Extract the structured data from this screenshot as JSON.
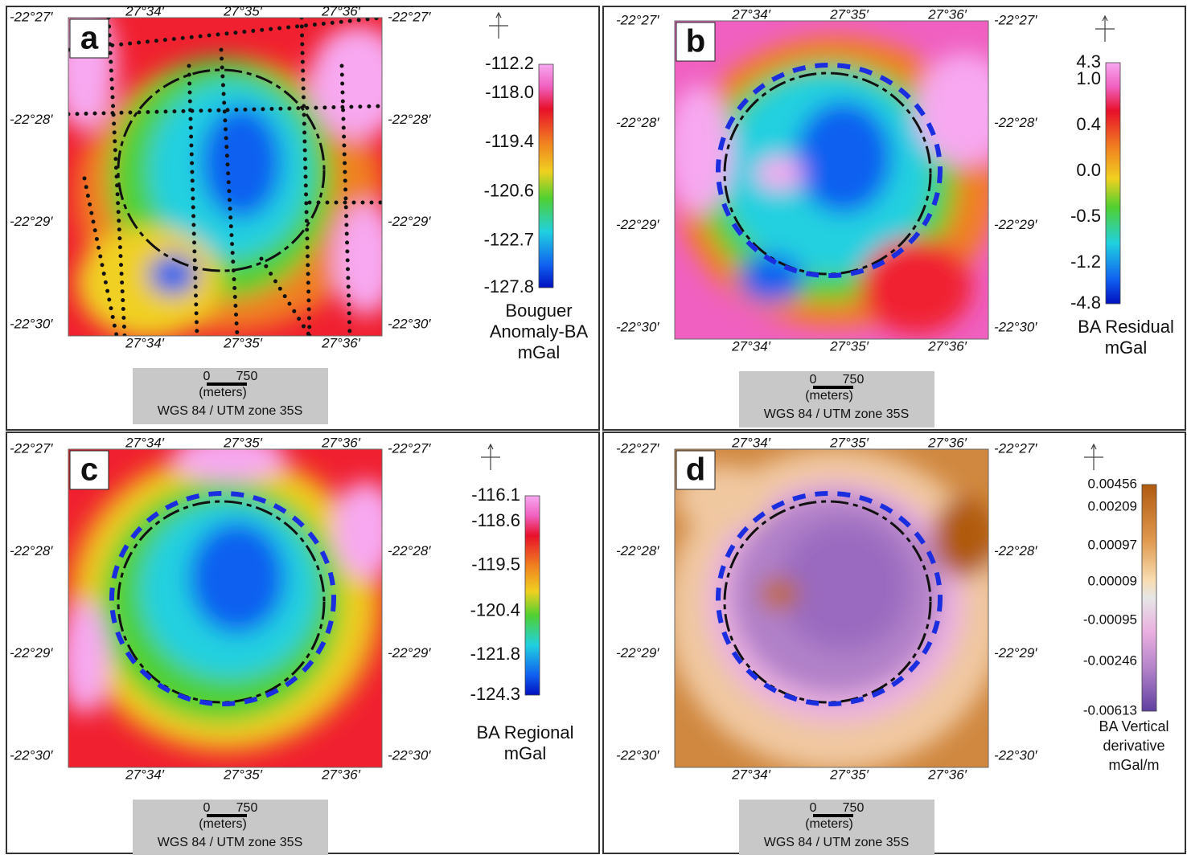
{
  "panels": [
    {
      "label": "a",
      "lat_labels": [
        "-22°27′",
        "-22°28′",
        "-22°29′",
        "-22°30′"
      ],
      "lon_labels": [
        "27°34′",
        "27°35′",
        "27°36′"
      ],
      "colorbar_labels": [
        "-112.2",
        "-118.0",
        "-119.4",
        "-120.6",
        "-122.7",
        "-127.8"
      ],
      "legend_title": [
        "Bouguer",
        "Anomaly-BA",
        "mGal"
      ],
      "scale": {
        "start": "0",
        "length": "750",
        "unit": "(meters)",
        "crs": "WGS 84 / UTM zone 35S"
      }
    },
    {
      "label": "b",
      "lat_labels": [
        "-22°27′",
        "-22°28′",
        "-22°29′",
        "-22°30′"
      ],
      "lon_labels": [
        "27°34′",
        "27°35′",
        "27°36′"
      ],
      "colorbar_labels": [
        "4.3",
        "1.0",
        "0.4",
        "0.0",
        "-0.5",
        "-1.2",
        "-4.8"
      ],
      "legend_title": [
        "BA Residual",
        "mGal"
      ],
      "scale": {
        "start": "0",
        "length": "750",
        "unit": "(meters)",
        "crs": "WGS 84 / UTM zone 35S"
      }
    },
    {
      "label": "c",
      "lat_labels": [
        "-22°27′",
        "-22°28′",
        "-22°29′",
        "-22°30′"
      ],
      "lon_labels": [
        "27°34′",
        "27°35′",
        "27°36′"
      ],
      "colorbar_labels": [
        "-116.1",
        "-118.6",
        "-119.5",
        "-120.4",
        "-121.8",
        "-124.3"
      ],
      "legend_title": [
        "BA Regional",
        "mGal"
      ],
      "scale": {
        "start": "0",
        "length": "750",
        "unit": "(meters)",
        "crs": "WGS 84 / UTM zone 35S"
      }
    },
    {
      "label": "d",
      "lat_labels": [
        "-22°27′",
        "-22°28′",
        "-22°29′",
        "-22°30′"
      ],
      "lon_labels": [
        "27°34′",
        "27°35′",
        "27°36′"
      ],
      "colorbar_labels": [
        "0.00456",
        "0.00209",
        "0.00097",
        "0.00009",
        "-0.00095",
        "-0.00246",
        "-0.00613"
      ],
      "legend_title": [
        "BA Vertical",
        "derivative",
        "mGal/m"
      ],
      "scale": {
        "start": "0",
        "length": "750",
        "unit": "(meters)",
        "crs": "WGS 84 / UTM zone 35S"
      }
    }
  ]
}
